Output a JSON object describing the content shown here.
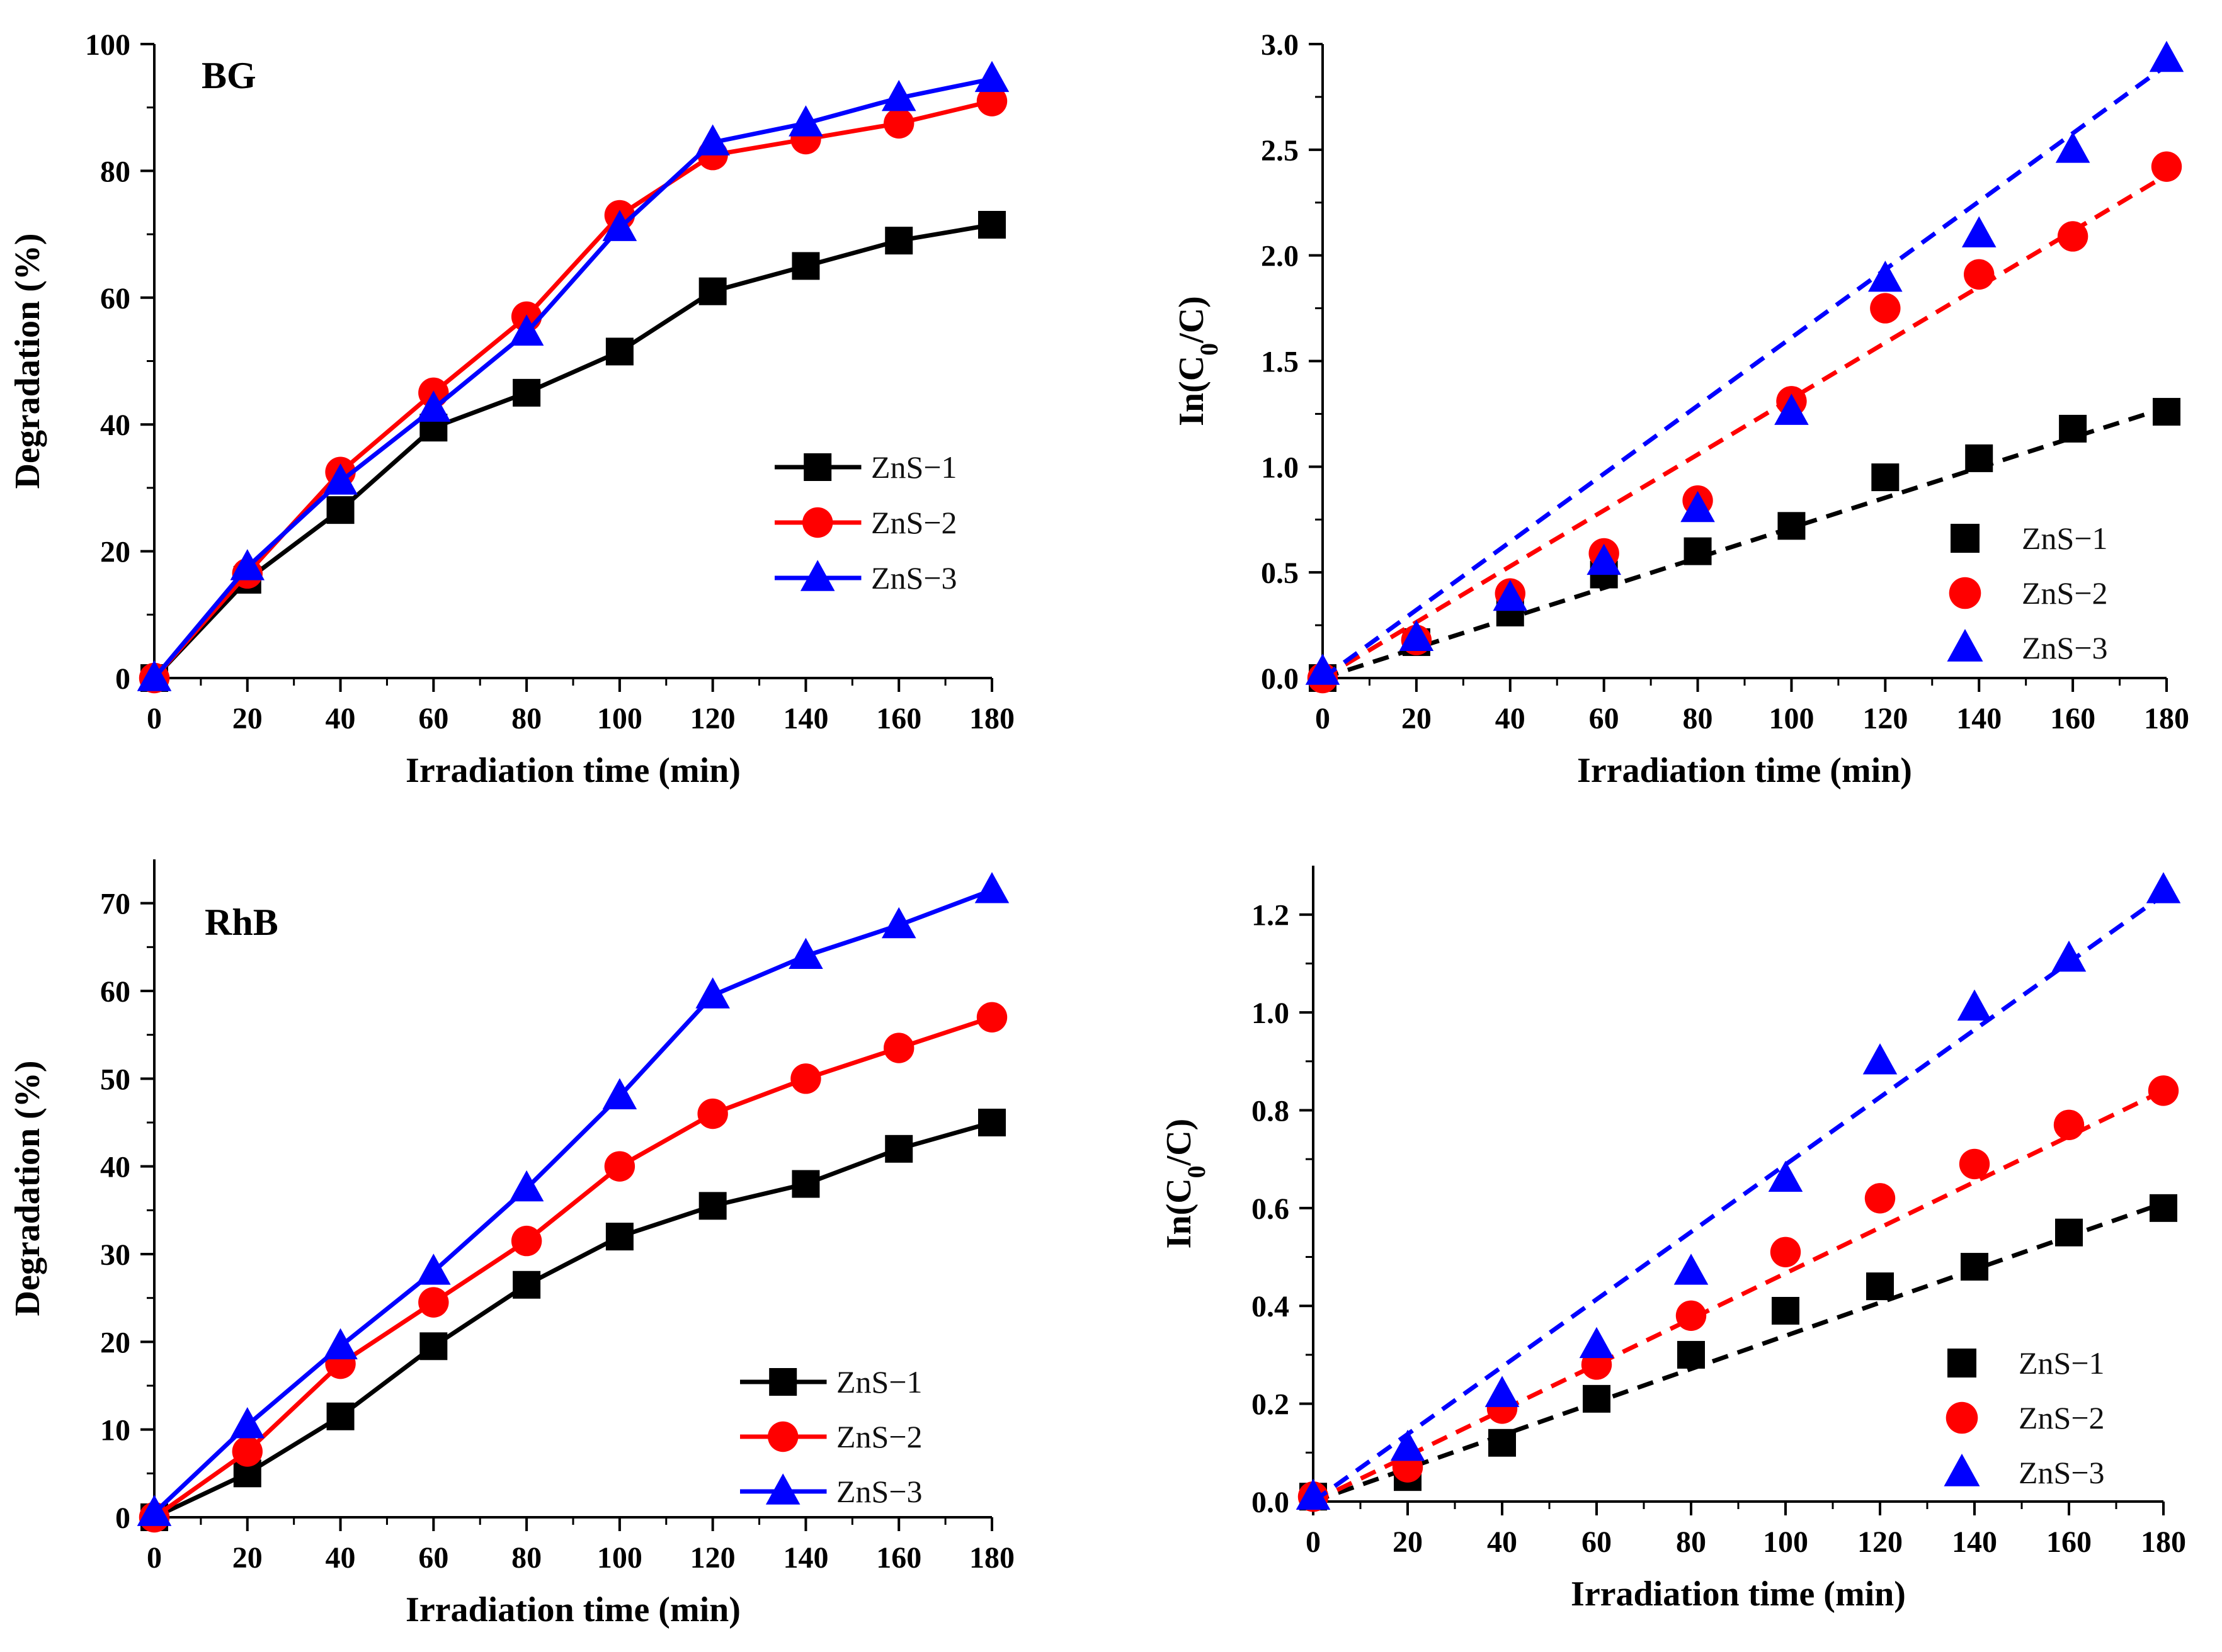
{
  "figure": {
    "background": "#ffffff"
  },
  "colors": {
    "ZnS-1": "#000000",
    "ZnS-2": "#ff0000",
    "ZnS-3": "#0000ff"
  },
  "chart_data": [
    {
      "id": "bg-degradation",
      "type": "line",
      "panel_label": "BG",
      "xlabel": "Irradiation time (min)",
      "ylabel": "Degradation (%)",
      "xlim": [
        0,
        180
      ],
      "ylim": [
        0,
        100
      ],
      "xticks": [
        0,
        20,
        40,
        60,
        80,
        100,
        120,
        140,
        160,
        180
      ],
      "yticks": [
        0,
        20,
        40,
        60,
        80,
        100
      ],
      "ytick_labels": [
        "0",
        "20",
        "40",
        "60",
        "80",
        "100"
      ],
      "minor_x": true,
      "minor_y": true,
      "x": [
        0,
        20,
        40,
        60,
        80,
        100,
        120,
        140,
        160,
        180
      ],
      "legend_position": "center-right",
      "series": [
        {
          "name": "ZnS−1",
          "color": "#000000",
          "marker": "square",
          "line": "solid",
          "values": [
            0,
            15.5,
            26.5,
            39.5,
            45,
            51.5,
            61,
            65,
            69,
            71.5
          ]
        },
        {
          "name": "ZnS−2",
          "color": "#ff0000",
          "marker": "circle",
          "line": "solid",
          "values": [
            0,
            16.5,
            32.5,
            45,
            57,
            73,
            82.5,
            85,
            87.5,
            91
          ]
        },
        {
          "name": "ZnS−3",
          "color": "#0000ff",
          "marker": "triangle",
          "line": "solid",
          "values": [
            0,
            17.5,
            31,
            42.5,
            54.5,
            71,
            84.5,
            87.5,
            91.5,
            94.5
          ]
        }
      ]
    },
    {
      "id": "bg-kinetics",
      "type": "scatter",
      "panel_label": "",
      "xlabel": "Irradiation time (min)",
      "ylabel": "In(C0/C)",
      "xlim": [
        0,
        180
      ],
      "ylim": [
        0,
        3.0
      ],
      "xticks": [
        0,
        20,
        40,
        60,
        80,
        100,
        120,
        140,
        160,
        180
      ],
      "yticks": [
        0,
        0.5,
        1.0,
        1.5,
        2.0,
        2.5,
        3.0
      ],
      "ytick_labels": [
        "0.0",
        "0.5",
        "1.0",
        "1.5",
        "2.0",
        "2.5",
        "3.0"
      ],
      "minor_x": true,
      "minor_y": true,
      "x": [
        0,
        20,
        40,
        60,
        80,
        100,
        120,
        140,
        160,
        180
      ],
      "legend_position": "bottom-right",
      "series": [
        {
          "name": "ZnS−1",
          "color": "#000000",
          "marker": "square",
          "line": "none",
          "fit": [
            0,
            1.28
          ],
          "values": [
            0,
            0.17,
            0.31,
            0.49,
            0.6,
            0.72,
            0.95,
            1.04,
            1.18,
            1.26
          ]
        },
        {
          "name": "ZnS−2",
          "color": "#ff0000",
          "marker": "circle",
          "line": "none",
          "fit": [
            0,
            2.38
          ],
          "values": [
            0,
            0.18,
            0.4,
            0.59,
            0.84,
            1.31,
            1.75,
            1.91,
            2.09,
            2.42
          ]
        },
        {
          "name": "ZnS−3",
          "color": "#0000ff",
          "marker": "triangle",
          "line": "none",
          "fit": [
            0,
            2.9
          ],
          "values": [
            0.03,
            0.19,
            0.38,
            0.55,
            0.8,
            1.26,
            1.89,
            2.1,
            2.5,
            2.93
          ]
        }
      ]
    },
    {
      "id": "rhb-degradation",
      "type": "line",
      "panel_label": "RhB",
      "xlabel": "Irradiation time (min)",
      "ylabel": "Degradation (%)",
      "xlim": [
        0,
        180
      ],
      "ylim": [
        0,
        75
      ],
      "xticks": [
        0,
        20,
        40,
        60,
        80,
        100,
        120,
        140,
        160,
        180
      ],
      "yticks": [
        0,
        10,
        20,
        30,
        40,
        50,
        60,
        70
      ],
      "ytick_labels": [
        "0",
        "10",
        "20",
        "30",
        "40",
        "50",
        "60",
        "70"
      ],
      "minor_x": true,
      "minor_y": true,
      "x": [
        0,
        20,
        40,
        60,
        80,
        100,
        120,
        140,
        160,
        180
      ],
      "legend_position": "bottom-right",
      "series": [
        {
          "name": "ZnS−1",
          "color": "#000000",
          "marker": "square",
          "line": "solid",
          "values": [
            0,
            5,
            11.5,
            19.5,
            26.5,
            32,
            35.5,
            38,
            42,
            45
          ]
        },
        {
          "name": "ZnS−2",
          "color": "#ff0000",
          "marker": "circle",
          "line": "solid",
          "values": [
            0,
            7.5,
            17.5,
            24.5,
            31.5,
            40,
            46,
            50,
            53.5,
            57
          ]
        },
        {
          "name": "ZnS−3",
          "color": "#0000ff",
          "marker": "triangle",
          "line": "solid",
          "values": [
            0.5,
            10.5,
            19.5,
            28,
            37.5,
            48,
            59.5,
            64,
            67.5,
            71.5
          ]
        }
      ]
    },
    {
      "id": "rhb-kinetics",
      "type": "scatter",
      "panel_label": "",
      "xlabel": "Irradiation time (min)",
      "ylabel": "In(C0/C)",
      "xlim": [
        0,
        180
      ],
      "ylim": [
        0,
        1.3
      ],
      "xticks": [
        0,
        20,
        40,
        60,
        80,
        100,
        120,
        140,
        160,
        180
      ],
      "yticks": [
        0,
        0.2,
        0.4,
        0.6,
        0.8,
        1.0,
        1.2
      ],
      "ytick_labels": [
        "0.0",
        "0.2",
        "0.4",
        "0.6",
        "0.8",
        "1.0",
        "1.2"
      ],
      "minor_x": true,
      "minor_y": true,
      "x": [
        0,
        20,
        40,
        60,
        80,
        100,
        120,
        140,
        160,
        180
      ],
      "legend_position": "bottom-right",
      "series": [
        {
          "name": "ZnS−1",
          "color": "#000000",
          "marker": "square",
          "line": "none",
          "fit": [
            0,
            0.61
          ],
          "values": [
            0.01,
            0.05,
            0.12,
            0.21,
            0.3,
            0.39,
            0.44,
            0.48,
            0.55,
            0.6
          ]
        },
        {
          "name": "ZnS−2",
          "color": "#ff0000",
          "marker": "circle",
          "line": "none",
          "fit": [
            0,
            0.84
          ],
          "values": [
            0.01,
            0.07,
            0.19,
            0.28,
            0.38,
            0.51,
            0.62,
            0.69,
            0.77,
            0.84
          ]
        },
        {
          "name": "ZnS−3",
          "color": "#0000ff",
          "marker": "triangle",
          "line": "none",
          "fit": [
            0,
            1.24
          ],
          "values": [
            0.01,
            0.11,
            0.22,
            0.32,
            0.47,
            0.66,
            0.9,
            1.01,
            1.11,
            1.25
          ]
        }
      ]
    }
  ]
}
